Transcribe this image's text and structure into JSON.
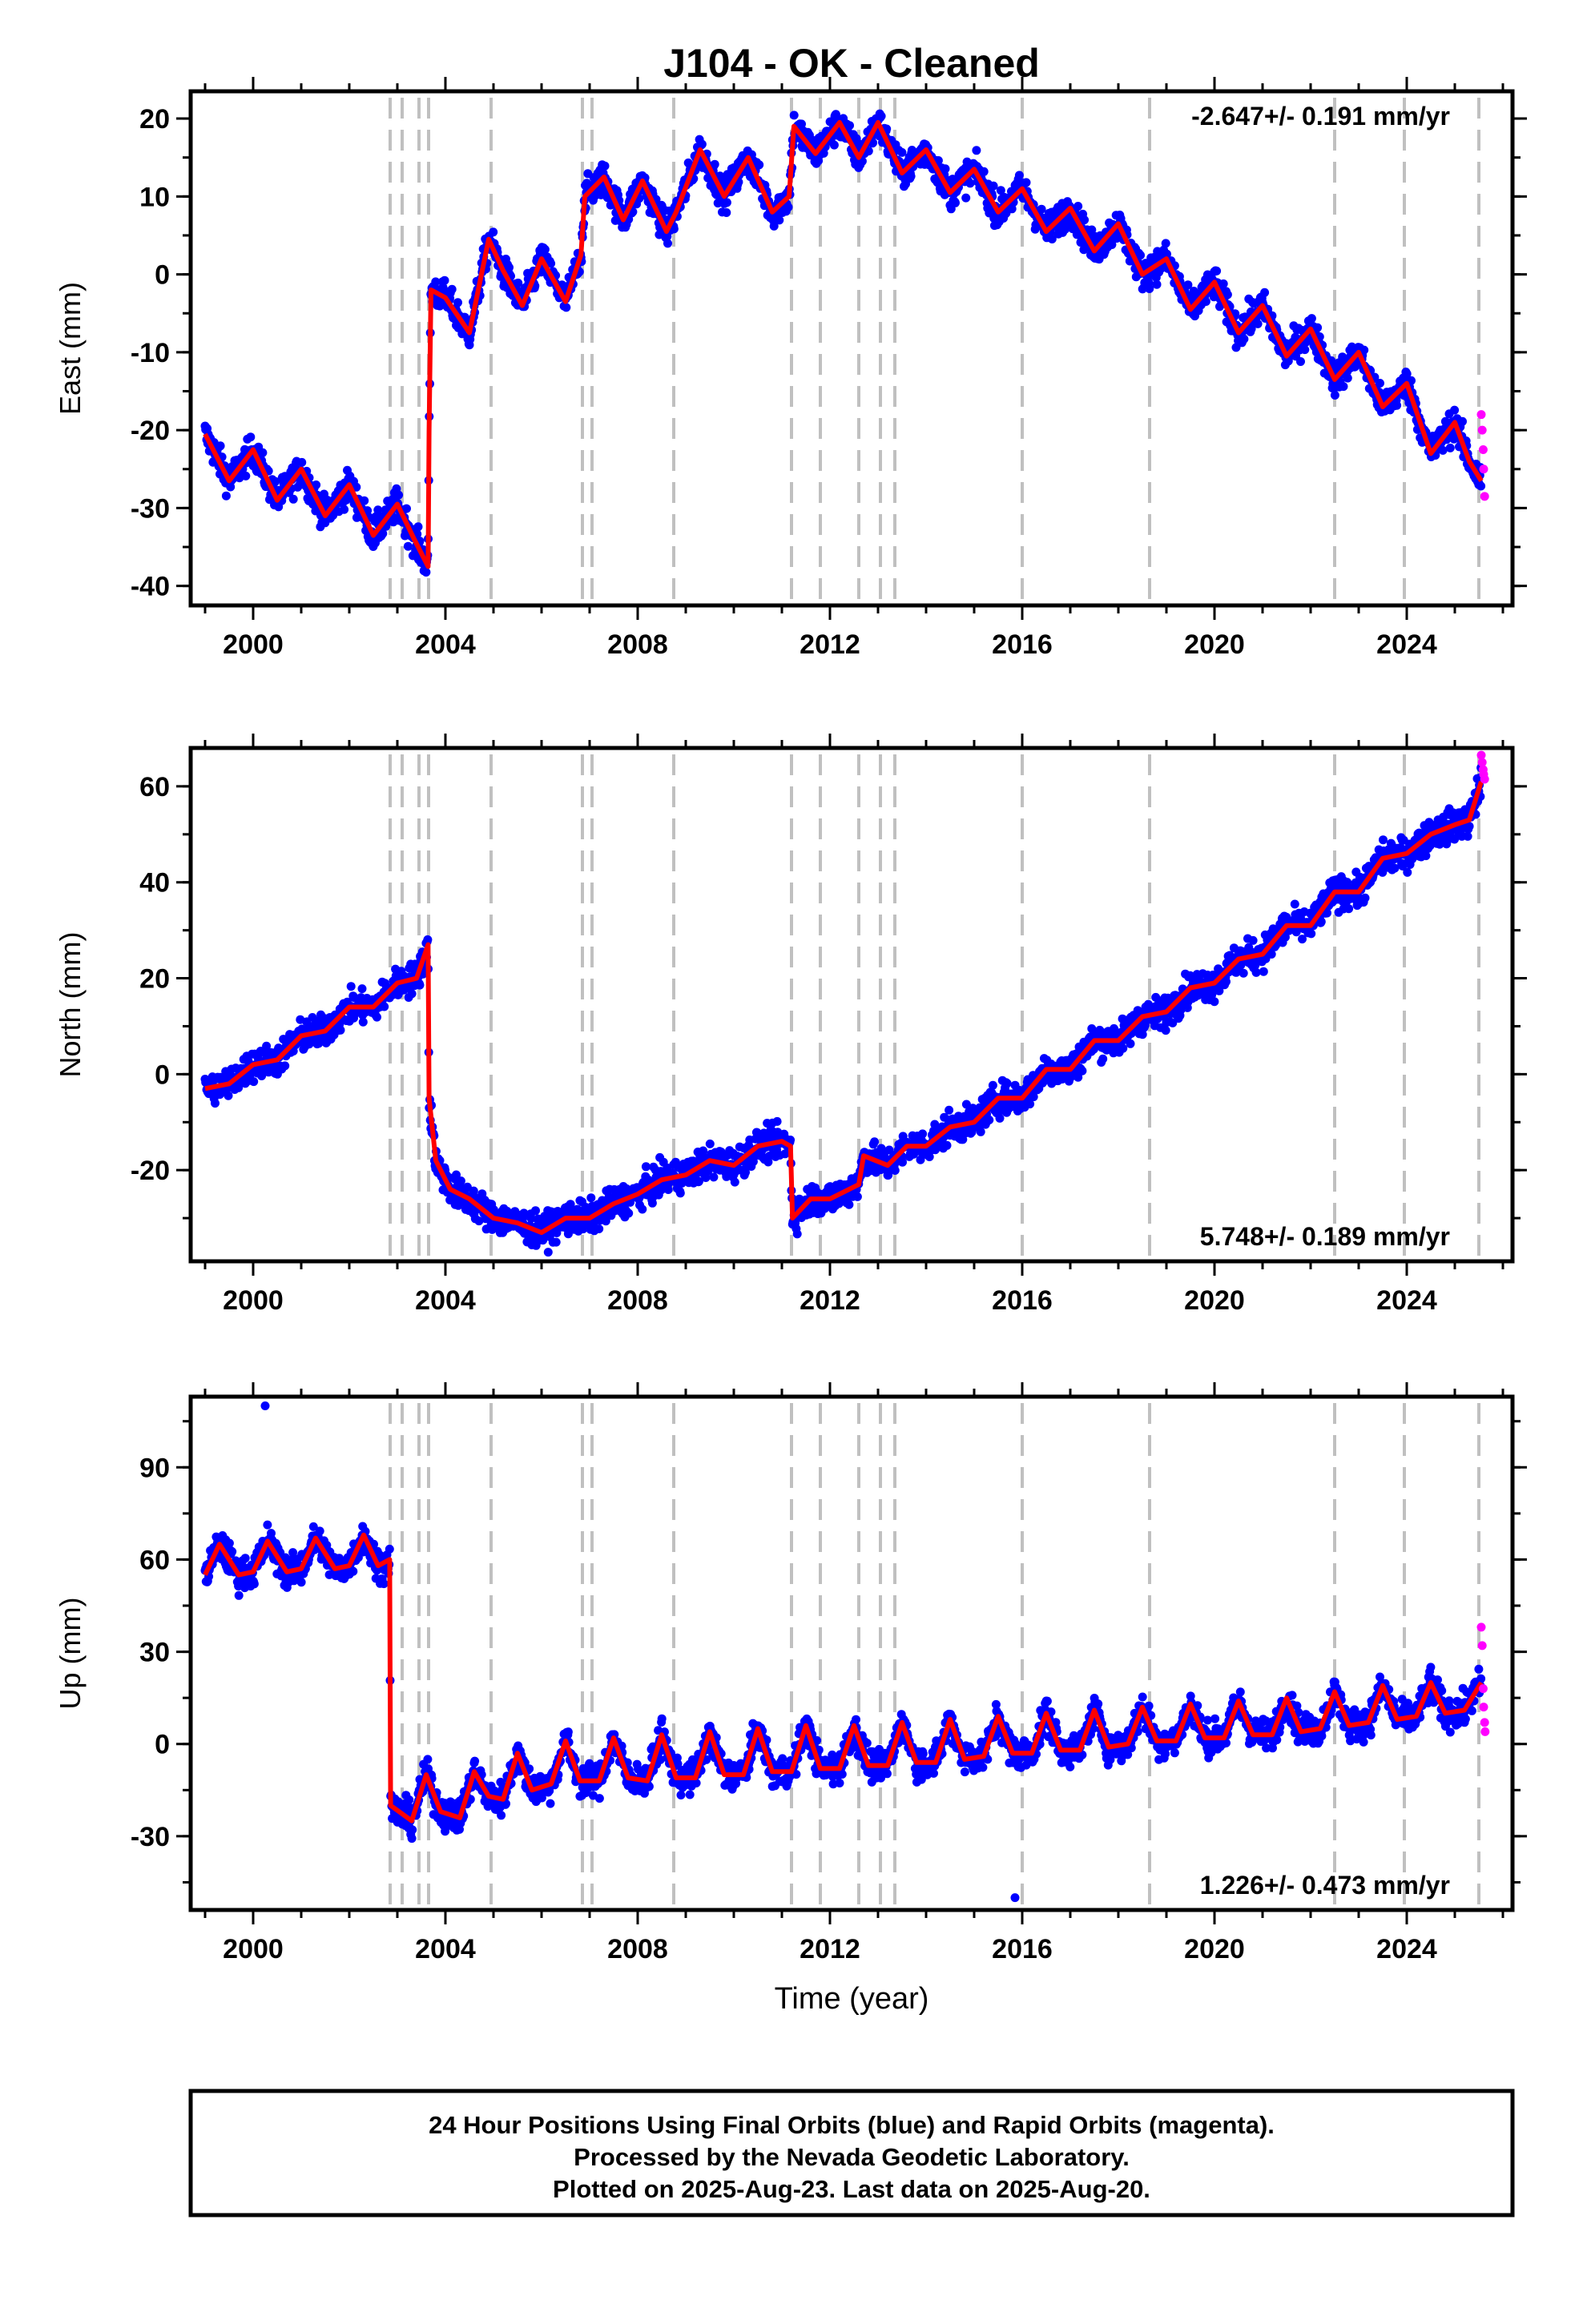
{
  "title": "J104  - OK - Cleaned",
  "colors": {
    "final": "#0000ff",
    "rapid": "#ff00ff",
    "model": "#ff0000",
    "event_line": "#c0c0c0",
    "frame": "#000000"
  },
  "xaxis": {
    "label": "Time (year)",
    "range": [
      1998.7,
      2026.2
    ],
    "ticks": [
      "2000",
      "2004",
      "2008",
      "2012",
      "2016",
      "2020",
      "2024"
    ],
    "tick_values": [
      2000,
      2004,
      2008,
      2012,
      2016,
      2020,
      2024
    ]
  },
  "events": [
    2002.85,
    2003.1,
    2003.45,
    2003.65,
    2004.95,
    2006.85,
    2007.05,
    2008.75,
    2011.2,
    2011.8,
    2012.6,
    2013.05,
    2013.35,
    2016.0,
    2018.65,
    2022.5,
    2023.95,
    2025.5
  ],
  "footer": {
    "line1": "24 Hour Positions Using Final Orbits (blue) and Rapid Orbits (magenta).",
    "line2": "Processed by the Nevada Geodetic Laboratory.",
    "line3": "Plotted on 2025-Aug-23. Last data on 2025-Aug-20."
  },
  "chart_data": [
    {
      "type": "scatter",
      "panel": "east",
      "ylabel": "East (mm)",
      "ylim": [
        -42.5,
        23.5
      ],
      "yticks": [
        "20",
        "10",
        "0",
        "-10",
        "-20",
        "-30",
        "-40"
      ],
      "ytick_values": [
        20,
        10,
        0,
        -10,
        -20,
        -30,
        -40
      ],
      "rate": "-2.647+/- 0.191 mm/yr",
      "rate_position": "top-right",
      "series": [
        {
          "name": "model",
          "kind": "line",
          "x": [
            1999.0,
            1999.5,
            2000.0,
            2000.5,
            2001.0,
            2001.5,
            2002.0,
            2002.5,
            2003.0,
            2003.35,
            2003.64,
            2003.66,
            2003.7,
            2004.0,
            2004.5,
            2004.9,
            2005.2,
            2005.6,
            2006.0,
            2006.5,
            2006.82,
            2006.9,
            2007.3,
            2007.7,
            2008.1,
            2008.6,
            2008.8,
            2009.3,
            2009.8,
            2010.3,
            2010.8,
            2011.15,
            2011.25,
            2011.7,
            2012.2,
            2012.6,
            2013.0,
            2013.5,
            2014.0,
            2014.5,
            2015.0,
            2015.5,
            2016.0,
            2016.5,
            2017.0,
            2017.5,
            2018.0,
            2018.5,
            2019.0,
            2019.5,
            2020.0,
            2020.5,
            2021.0,
            2021.5,
            2022.0,
            2022.5,
            2023.0,
            2023.5,
            2024.0,
            2024.5,
            2025.0,
            2025.3,
            2025.55
          ],
          "y": [
            -20.5,
            -26.5,
            -22.5,
            -29.0,
            -25.0,
            -31.0,
            -27.0,
            -33.5,
            -29.5,
            -34.0,
            -37.5,
            -20.0,
            -2.0,
            -3.0,
            -7.5,
            4.5,
            0.5,
            -4.0,
            2.0,
            -3.5,
            2.5,
            10.0,
            12.5,
            7.0,
            12.0,
            5.5,
            8.0,
            16.0,
            10.0,
            15.0,
            8.0,
            10.0,
            19.0,
            15.5,
            19.5,
            15.0,
            19.5,
            13.0,
            16.0,
            10.5,
            13.5,
            8.0,
            11.0,
            5.5,
            8.5,
            3.0,
            6.5,
            0.0,
            2.0,
            -4.5,
            -1.0,
            -7.5,
            -4.0,
            -10.5,
            -7.0,
            -13.5,
            -10.0,
            -17.0,
            -14.0,
            -23.0,
            -19.0,
            -24.0,
            -26.5
          ]
        },
        {
          "name": "rapid",
          "kind": "points",
          "x": [
            2025.55,
            2025.57,
            2025.59,
            2025.6,
            2025.62
          ],
          "y": [
            -18.0,
            -20.0,
            -22.5,
            -25.0,
            -28.5
          ]
        }
      ]
    },
    {
      "type": "scatter",
      "panel": "north",
      "ylabel": "North (mm)",
      "ylim": [
        -39.0,
        68.0
      ],
      "yticks": [
        "60",
        "40",
        "20",
        "0",
        "-20"
      ],
      "ytick_values": [
        60,
        40,
        20,
        0,
        -20
      ],
      "rate": "5.748+/- 0.189 mm/yr",
      "rate_position": "bottom-right",
      "series": [
        {
          "name": "model",
          "kind": "line",
          "x": [
            1999.0,
            1999.5,
            2000.0,
            2000.5,
            2001.0,
            2001.5,
            2002.0,
            2002.5,
            2003.0,
            2003.4,
            2003.64,
            2003.66,
            2003.8,
            2004.1,
            2004.5,
            2005.0,
            2005.5,
            2006.0,
            2006.5,
            2007.0,
            2007.5,
            2008.0,
            2008.5,
            2009.0,
            2009.5,
            2010.0,
            2010.5,
            2011.0,
            2011.18,
            2011.22,
            2011.6,
            2012.0,
            2012.6,
            2012.7,
            2013.2,
            2013.6,
            2014.0,
            2014.5,
            2015.0,
            2015.5,
            2016.0,
            2016.5,
            2017.0,
            2017.5,
            2018.0,
            2018.5,
            2019.0,
            2019.5,
            2020.0,
            2020.5,
            2021.0,
            2021.5,
            2022.0,
            2022.5,
            2023.0,
            2023.5,
            2024.0,
            2024.5,
            2025.0,
            2025.3,
            2025.55
          ],
          "y": [
            -3.0,
            -2.0,
            2.0,
            3.0,
            8.0,
            9.0,
            14.0,
            14.0,
            19.0,
            20.0,
            27.0,
            -5.0,
            -18.0,
            -24.0,
            -26.0,
            -30.0,
            -31.0,
            -33.0,
            -30.0,
            -30.0,
            -27.0,
            -25.0,
            -22.0,
            -21.0,
            -18.0,
            -19.0,
            -15.0,
            -14.0,
            -15.0,
            -30.0,
            -26.0,
            -26.0,
            -23.0,
            -17.0,
            -19.0,
            -15.0,
            -15.0,
            -11.0,
            -10.0,
            -5.0,
            -5.0,
            1.0,
            1.0,
            7.0,
            7.0,
            12.0,
            13.0,
            18.0,
            19.0,
            24.0,
            25.0,
            31.0,
            31.0,
            38.0,
            38.0,
            45.0,
            46.0,
            50.0,
            52.0,
            53.0,
            61.0
          ]
        },
        {
          "name": "rapid",
          "kind": "points",
          "x": [
            2025.55,
            2025.57,
            2025.59,
            2025.6,
            2025.62
          ],
          "y": [
            66.5,
            65.0,
            63.5,
            62.5,
            61.5
          ]
        }
      ]
    },
    {
      "type": "scatter",
      "panel": "up",
      "ylabel": "Up (mm)",
      "ylim": [
        -54.0,
        113.0
      ],
      "yticks": [
        "90",
        "60",
        "30",
        "0",
        "-30"
      ],
      "ytick_values": [
        90,
        60,
        30,
        0,
        -30
      ],
      "rate": "1.226+/- 0.473 mm/yr",
      "rate_position": "bottom-right",
      "outliers": {
        "x": [
          2000.25,
          2015.85
        ],
        "y": [
          110.0,
          -50.0
        ]
      },
      "series": [
        {
          "name": "model",
          "kind": "line",
          "x": [
            1999.0,
            1999.3,
            1999.7,
            2000.0,
            2000.3,
            2000.7,
            2001.0,
            2001.3,
            2001.7,
            2002.0,
            2002.3,
            2002.6,
            2002.84,
            2002.86,
            2003.3,
            2003.6,
            2003.9,
            2004.3,
            2004.6,
            2004.9,
            2005.2,
            2005.5,
            2005.8,
            2006.2,
            2006.5,
            2006.8,
            2007.2,
            2007.5,
            2007.8,
            2008.2,
            2008.5,
            2008.8,
            2009.2,
            2009.5,
            2009.8,
            2010.2,
            2010.5,
            2010.8,
            2011.2,
            2011.5,
            2011.8,
            2012.2,
            2012.5,
            2012.8,
            2013.2,
            2013.5,
            2013.8,
            2014.2,
            2014.5,
            2014.8,
            2015.2,
            2015.5,
            2015.8,
            2016.2,
            2016.5,
            2016.8,
            2017.2,
            2017.5,
            2017.8,
            2018.2,
            2018.5,
            2018.8,
            2019.2,
            2019.5,
            2019.8,
            2020.2,
            2020.5,
            2020.8,
            2021.2,
            2021.5,
            2021.8,
            2022.2,
            2022.5,
            2022.8,
            2023.2,
            2023.5,
            2023.8,
            2024.2,
            2024.5,
            2024.8,
            2025.2,
            2025.55
          ],
          "y": [
            55.0,
            65.0,
            55.0,
            56.0,
            66.0,
            56.0,
            57.0,
            67.0,
            57.0,
            58.0,
            68.0,
            58.0,
            60.0,
            -20.0,
            -25.0,
            -10.0,
            -22.0,
            -24.0,
            -9.0,
            -17.0,
            -18.0,
            -3.0,
            -15.0,
            -13.0,
            1.0,
            -12.0,
            -12.0,
            2.0,
            -11.0,
            -12.0,
            3.0,
            -11.0,
            -11.0,
            4.0,
            -10.0,
            -10.0,
            5.0,
            -9.0,
            -9.0,
            6.0,
            -8.0,
            -8.0,
            6.0,
            -7.0,
            -7.0,
            7.0,
            -6.0,
            -6.0,
            8.0,
            -5.0,
            -4.0,
            9.0,
            -3.0,
            -3.0,
            10.0,
            -2.0,
            -2.0,
            11.0,
            -1.0,
            0.0,
            12.0,
            1.0,
            1.0,
            13.0,
            2.0,
            2.0,
            14.0,
            3.0,
            3.0,
            15.0,
            4.0,
            5.0,
            17.0,
            6.0,
            7.0,
            19.0,
            8.0,
            9.0,
            20.0,
            10.0,
            11.0,
            20.0
          ]
        },
        {
          "name": "rapid",
          "kind": "points",
          "x": [
            2025.55,
            2025.57,
            2025.59,
            2025.6,
            2025.62,
            2025.63
          ],
          "y": [
            38.0,
            32.0,
            18.0,
            12.0,
            7.0,
            4.0
          ]
        }
      ]
    }
  ]
}
